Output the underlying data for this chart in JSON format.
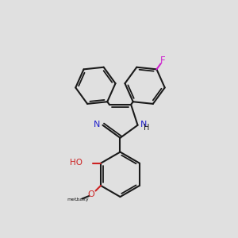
{
  "bg_color": "#e0e0e0",
  "bond_color": "#1a1a1a",
  "N_color": "#2222cc",
  "O_color": "#cc2222",
  "F_color": "#cc22cc",
  "lw": 1.5,
  "lw2": 1.3,
  "off": 0.09,
  "xlim": [
    0,
    10
  ],
  "ylim": [
    0,
    10
  ]
}
